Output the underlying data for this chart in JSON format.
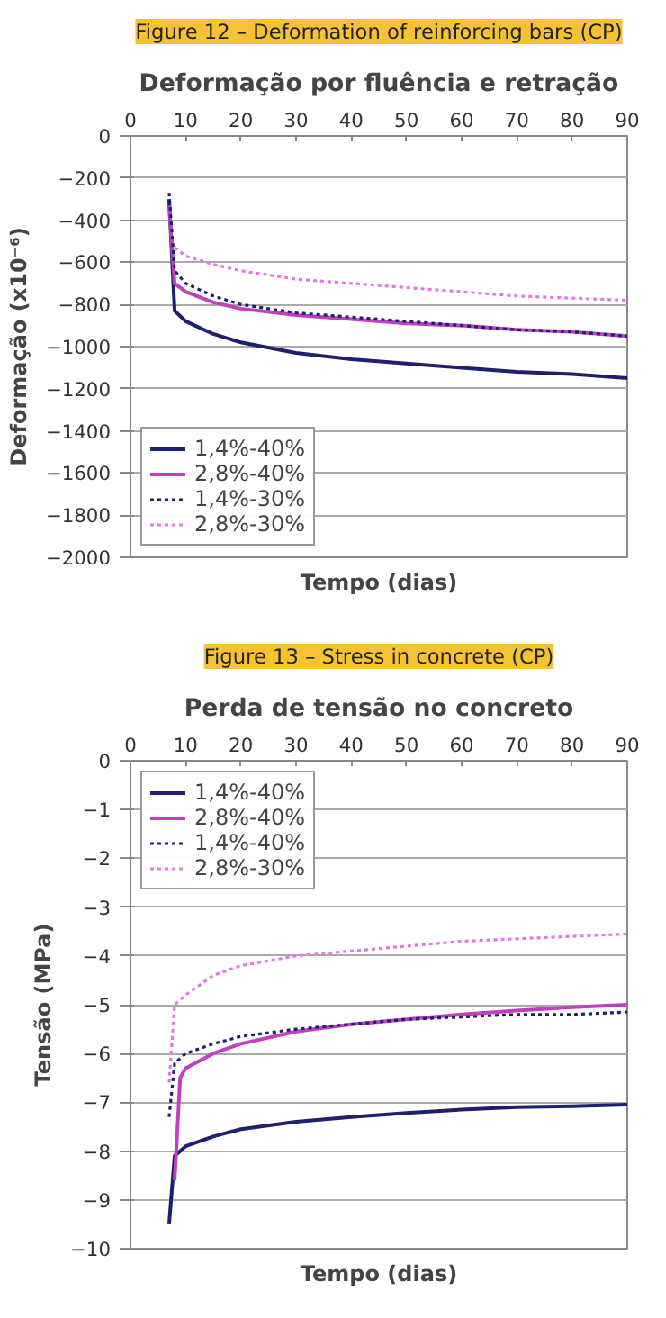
{
  "chart_data": [
    {
      "type": "line",
      "subtitle": "Figure 12 – Deformation of reinforcing bars (CP)",
      "title": "Deformação por fluência e retração",
      "xlabel": "Tempo (dias)",
      "ylabel": "Deformação (x10⁻⁶)",
      "xlim": [
        0,
        90
      ],
      "xticks": [
        0,
        10,
        20,
        30,
        40,
        50,
        60,
        70,
        80,
        90
      ],
      "ylim": [
        -2000,
        0
      ],
      "yticks": [
        -2000,
        -1800,
        -1600,
        -1400,
        -1200,
        -1000,
        -800,
        -600,
        -400,
        -200,
        0
      ],
      "grid": "y",
      "legend": "bottom left",
      "marker": "none",
      "series": [
        {
          "name": "1,4%-40%",
          "color": "#1f1f6e",
          "line_style": "solid",
          "x": [
            7,
            8,
            10,
            15,
            20,
            30,
            40,
            50,
            60,
            70,
            80,
            90
          ],
          "values": [
            -300,
            -830,
            -880,
            -940,
            -980,
            -1030,
            -1060,
            -1080,
            -1100,
            -1120,
            -1130,
            -1150
          ]
        },
        {
          "name": "2,8%-40%",
          "color": "#c040c0",
          "line_style": "solid",
          "x": [
            7,
            8,
            10,
            15,
            20,
            30,
            40,
            50,
            60,
            70,
            80,
            90
          ],
          "values": [
            -330,
            -700,
            -740,
            -790,
            -820,
            -850,
            -870,
            -890,
            -900,
            -920,
            -930,
            -950
          ]
        },
        {
          "name": "1,4%-30%",
          "color": "#1f1f6e",
          "line_style": "dotted",
          "x": [
            7,
            8,
            10,
            15,
            20,
            30,
            40,
            50,
            60,
            70,
            80,
            90
          ],
          "values": [
            -270,
            -640,
            -700,
            -760,
            -800,
            -840,
            -860,
            -880,
            -900,
            -920,
            -930,
            -950
          ]
        },
        {
          "name": "2,8%-30%",
          "color": "#e07ae0",
          "line_style": "dotted",
          "x": [
            8,
            10,
            15,
            20,
            30,
            40,
            50,
            60,
            70,
            80,
            90
          ],
          "values": [
            -530,
            -570,
            -610,
            -640,
            -680,
            -700,
            -720,
            -740,
            -760,
            -770,
            -780
          ]
        }
      ]
    },
    {
      "type": "line",
      "subtitle": "Figure 13 – Stress in concrete (CP)",
      "title": "Perda de tensão no concreto",
      "xlabel": "Tempo (dias)",
      "ylabel": "Tensão (MPa)",
      "xlim": [
        0,
        90
      ],
      "xticks": [
        0,
        10,
        20,
        30,
        40,
        50,
        60,
        70,
        80,
        90
      ],
      "ylim": [
        -10,
        0
      ],
      "yticks": [
        -10,
        -9,
        -8,
        -7,
        -6,
        -5,
        -4,
        -3,
        -2,
        -1,
        0
      ],
      "grid": "y",
      "legend": "top left",
      "marker": "none",
      "series": [
        {
          "name": "1,4%-40%",
          "color": "#1f1f6e",
          "line_style": "solid",
          "x": [
            7,
            8,
            10,
            15,
            20,
            30,
            40,
            50,
            60,
            70,
            80,
            90
          ],
          "values": [
            -9.5,
            -8.1,
            -7.9,
            -7.7,
            -7.55,
            -7.4,
            -7.3,
            -7.22,
            -7.15,
            -7.1,
            -7.08,
            -7.05
          ]
        },
        {
          "name": "2,8%-40%",
          "color": "#c040c0",
          "line_style": "solid",
          "x": [
            8,
            9,
            10,
            15,
            20,
            30,
            40,
            50,
            60,
            70,
            80,
            90
          ],
          "values": [
            -8.6,
            -6.5,
            -6.3,
            -6.0,
            -5.8,
            -5.55,
            -5.4,
            -5.3,
            -5.2,
            -5.12,
            -5.05,
            -5.0
          ]
        },
        {
          "name": "1,4%-40%",
          "color": "#1f1f6e",
          "line_style": "dotted",
          "x": [
            7,
            8,
            10,
            15,
            20,
            30,
            40,
            50,
            60,
            70,
            80,
            90
          ],
          "values": [
            -7.3,
            -6.2,
            -6.0,
            -5.8,
            -5.65,
            -5.5,
            -5.4,
            -5.3,
            -5.25,
            -5.2,
            -5.2,
            -5.15
          ]
        },
        {
          "name": "2,8%-30%",
          "color": "#e07ae0",
          "line_style": "dotted",
          "x": [
            7,
            8,
            10,
            15,
            20,
            30,
            40,
            50,
            60,
            70,
            80,
            90
          ],
          "values": [
            -6.6,
            -5.0,
            -4.8,
            -4.4,
            -4.2,
            -4.0,
            -3.9,
            -3.8,
            -3.7,
            -3.65,
            -3.6,
            -3.55
          ]
        }
      ]
    }
  ]
}
